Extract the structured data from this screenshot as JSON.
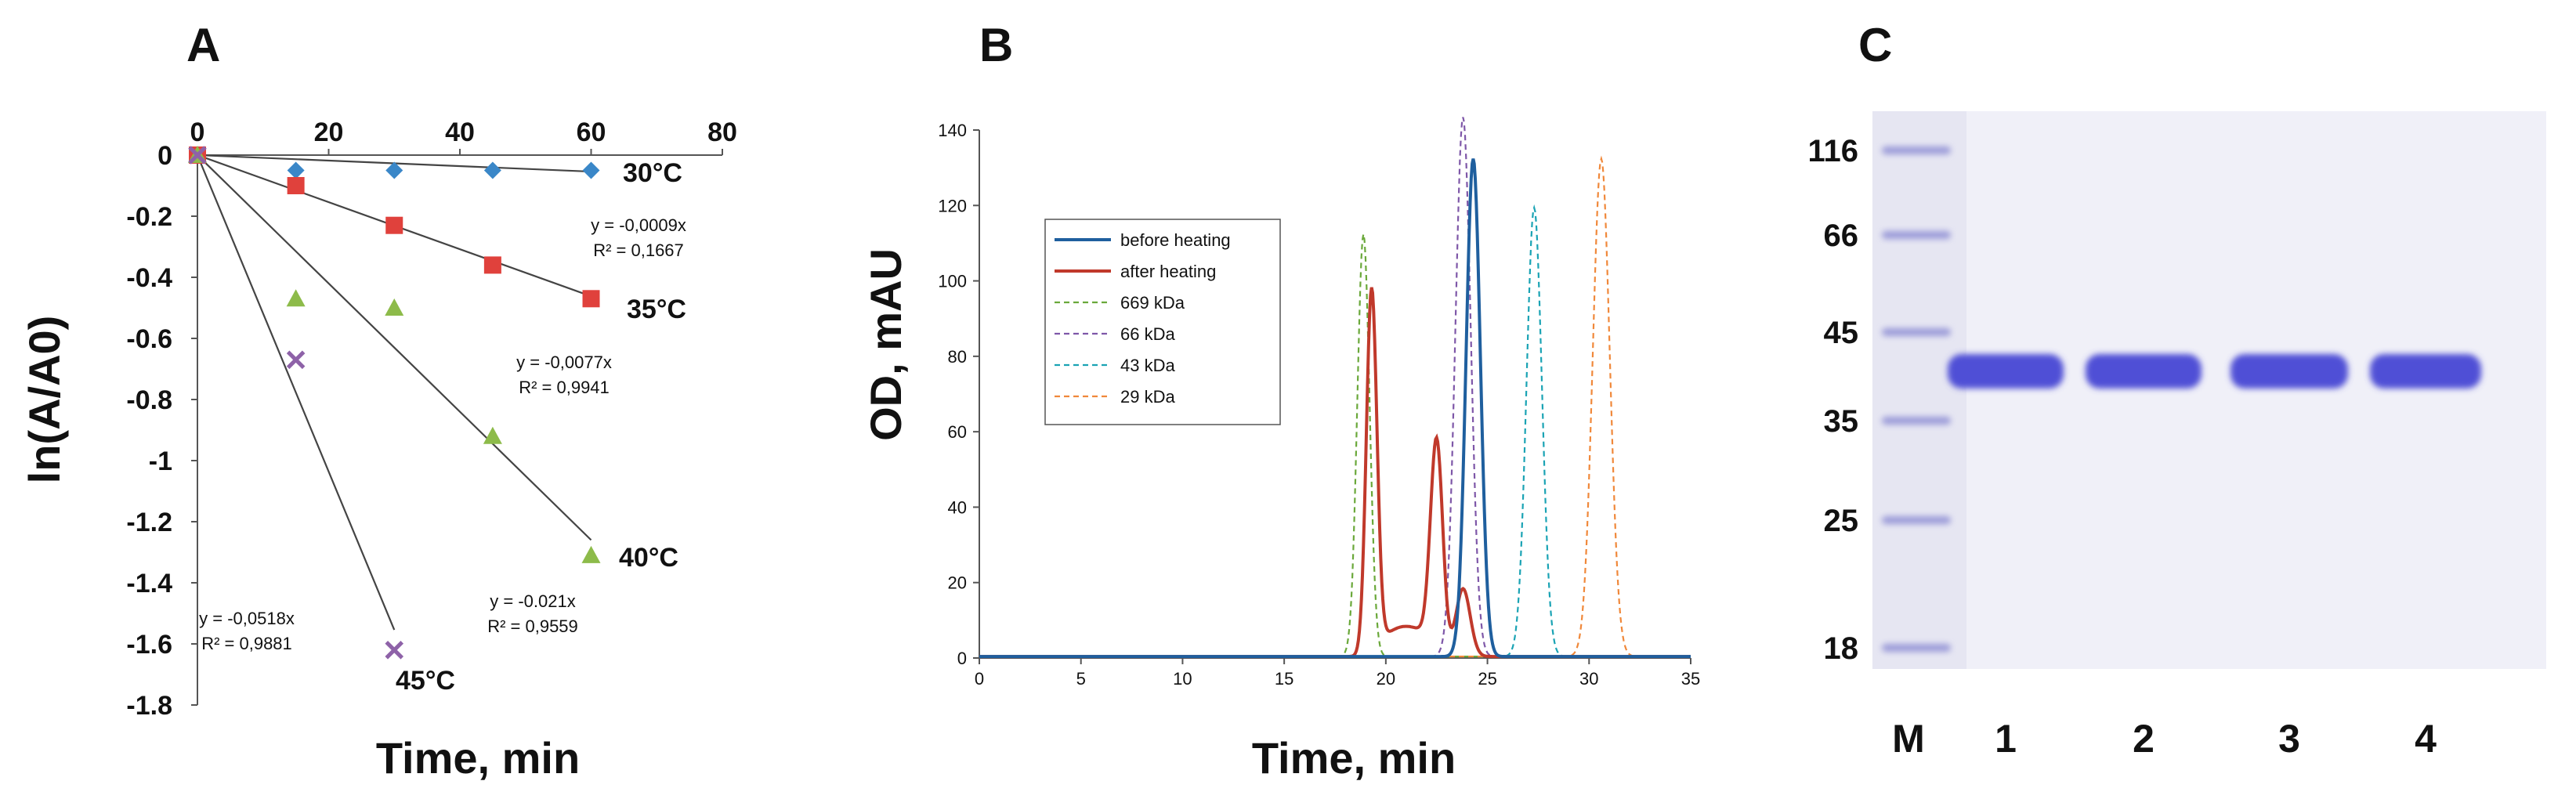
{
  "chart_data": [
    {
      "panel": "A",
      "type": "scatter",
      "xlabel": "Time, min",
      "ylabel": "ln(A/A0)",
      "xlim": [
        0,
        80
      ],
      "ylim": [
        -1.8,
        0
      ],
      "xticks": [
        "0",
        "20",
        "40",
        "60",
        "80"
      ],
      "yticks": [
        "0",
        "-0.2",
        "-0.4",
        "-0.6",
        "-0.8",
        "-1",
        "-1.2",
        "-1.4",
        "-1.6",
        "-1.8"
      ],
      "series": [
        {
          "name": "30°C",
          "marker": "diamond",
          "color": "#3a87c8",
          "x": [
            0,
            15,
            30,
            45,
            60
          ],
          "y": [
            0,
            -0.05,
            -0.05,
            -0.05,
            -0.05
          ],
          "fit_slope": -0.0009,
          "equation": "y = -0,0009x",
          "r2": "R² = 0,1667"
        },
        {
          "name": "35°C",
          "marker": "square",
          "color": "#e0413c",
          "x": [
            0,
            15,
            30,
            45,
            60
          ],
          "y": [
            0,
            -0.1,
            -0.23,
            -0.36,
            -0.47
          ],
          "fit_slope": -0.0077,
          "equation": "y = -0,0077x",
          "r2": "R² = 0,9941"
        },
        {
          "name": "40°C",
          "marker": "triangle",
          "color": "#8dbb4a",
          "x": [
            0,
            15,
            30,
            45,
            60
          ],
          "y": [
            0,
            -0.47,
            -0.5,
            -0.92,
            -1.31
          ],
          "fit_slope": -0.021,
          "equation": "y = -0.021x",
          "r2": "R² = 0,9559"
        },
        {
          "name": "45°C",
          "marker": "x",
          "color": "#8e62a8",
          "x": [
            0,
            15,
            30
          ],
          "y": [
            0,
            -0.67,
            -1.62
          ],
          "fit_slope": -0.0518,
          "equation": "y = -0,0518x",
          "r2": "R² = 0,9881"
        }
      ]
    },
    {
      "panel": "B",
      "type": "line",
      "xlabel": "Time, min",
      "ylabel": "OD, mAU",
      "xlim": [
        0,
        35
      ],
      "ylim": [
        0,
        140
      ],
      "xticks": [
        "0",
        "5",
        "10",
        "15",
        "20",
        "25",
        "30",
        "35"
      ],
      "yticks": [
        "0",
        "20",
        "40",
        "60",
        "80",
        "100",
        "120",
        "140"
      ],
      "series": [
        {
          "name": "before heating",
          "color": "#1f5f9e",
          "dash": false,
          "peaks": [
            {
              "center": 24.3,
              "height": 132,
              "width": 0.35
            }
          ]
        },
        {
          "name": "after heating",
          "color": "#c0392b",
          "dash": false,
          "baseline_hump": {
            "from": 19.0,
            "to": 23.0,
            "level": 8
          },
          "peaks": [
            {
              "center": 19.3,
              "height": 96,
              "width": 0.26
            },
            {
              "center": 22.5,
              "height": 55,
              "width": 0.3
            },
            {
              "center": 23.8,
              "height": 18,
              "width": 0.35
            }
          ]
        },
        {
          "name": "669 kDa",
          "color": "#6aa83a",
          "dash": true,
          "peaks": [
            {
              "center": 18.9,
              "height": 112,
              "width": 0.3
            }
          ]
        },
        {
          "name": "66 kDa",
          "color": "#7e57a8",
          "dash": true,
          "peaks": [
            {
              "center": 23.8,
              "height": 143,
              "width": 0.38
            }
          ]
        },
        {
          "name": "43 kDa",
          "color": "#1aa3b4",
          "dash": true,
          "peaks": [
            {
              "center": 27.3,
              "height": 119,
              "width": 0.38
            }
          ]
        },
        {
          "name": "29 kDa",
          "color": "#f0883a",
          "dash": true,
          "peaks": [
            {
              "center": 30.6,
              "height": 132,
              "width": 0.42
            }
          ]
        }
      ]
    }
  ],
  "panels": {
    "a": "A",
    "b": "B",
    "c": "C"
  },
  "gel": {
    "markers_kda": [
      "116",
      "66",
      "45",
      "35",
      "25",
      "18"
    ],
    "lanes": [
      "M",
      "1",
      "2",
      "3",
      "4"
    ]
  }
}
